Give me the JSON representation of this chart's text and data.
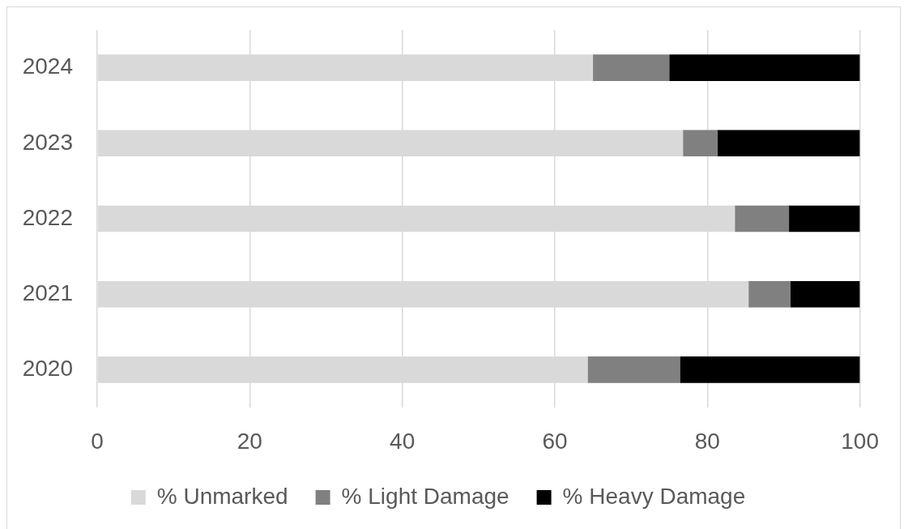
{
  "chart_data": {
    "type": "bar",
    "orientation": "horizontal",
    "stacked": true,
    "categories": [
      "2024",
      "2023",
      "2022",
      "2021",
      "2020"
    ],
    "series": [
      {
        "name": "% Unmarked",
        "color": "#d9d9d9",
        "values": [
          65,
          76.8,
          83.6,
          85.4,
          64.3
        ]
      },
      {
        "name": "% Light Damage",
        "color": "#808080",
        "values": [
          10,
          4.5,
          7.1,
          5.5,
          12.1
        ]
      },
      {
        "name": "% Heavy Damage",
        "color": "#000000",
        "values": [
          25,
          18.7,
          9.3,
          9.1,
          23.6
        ]
      }
    ],
    "xlim": [
      0,
      100
    ],
    "xticks": [
      0,
      20,
      40,
      60,
      80,
      100
    ],
    "grid": "x",
    "legend": "bottom"
  }
}
